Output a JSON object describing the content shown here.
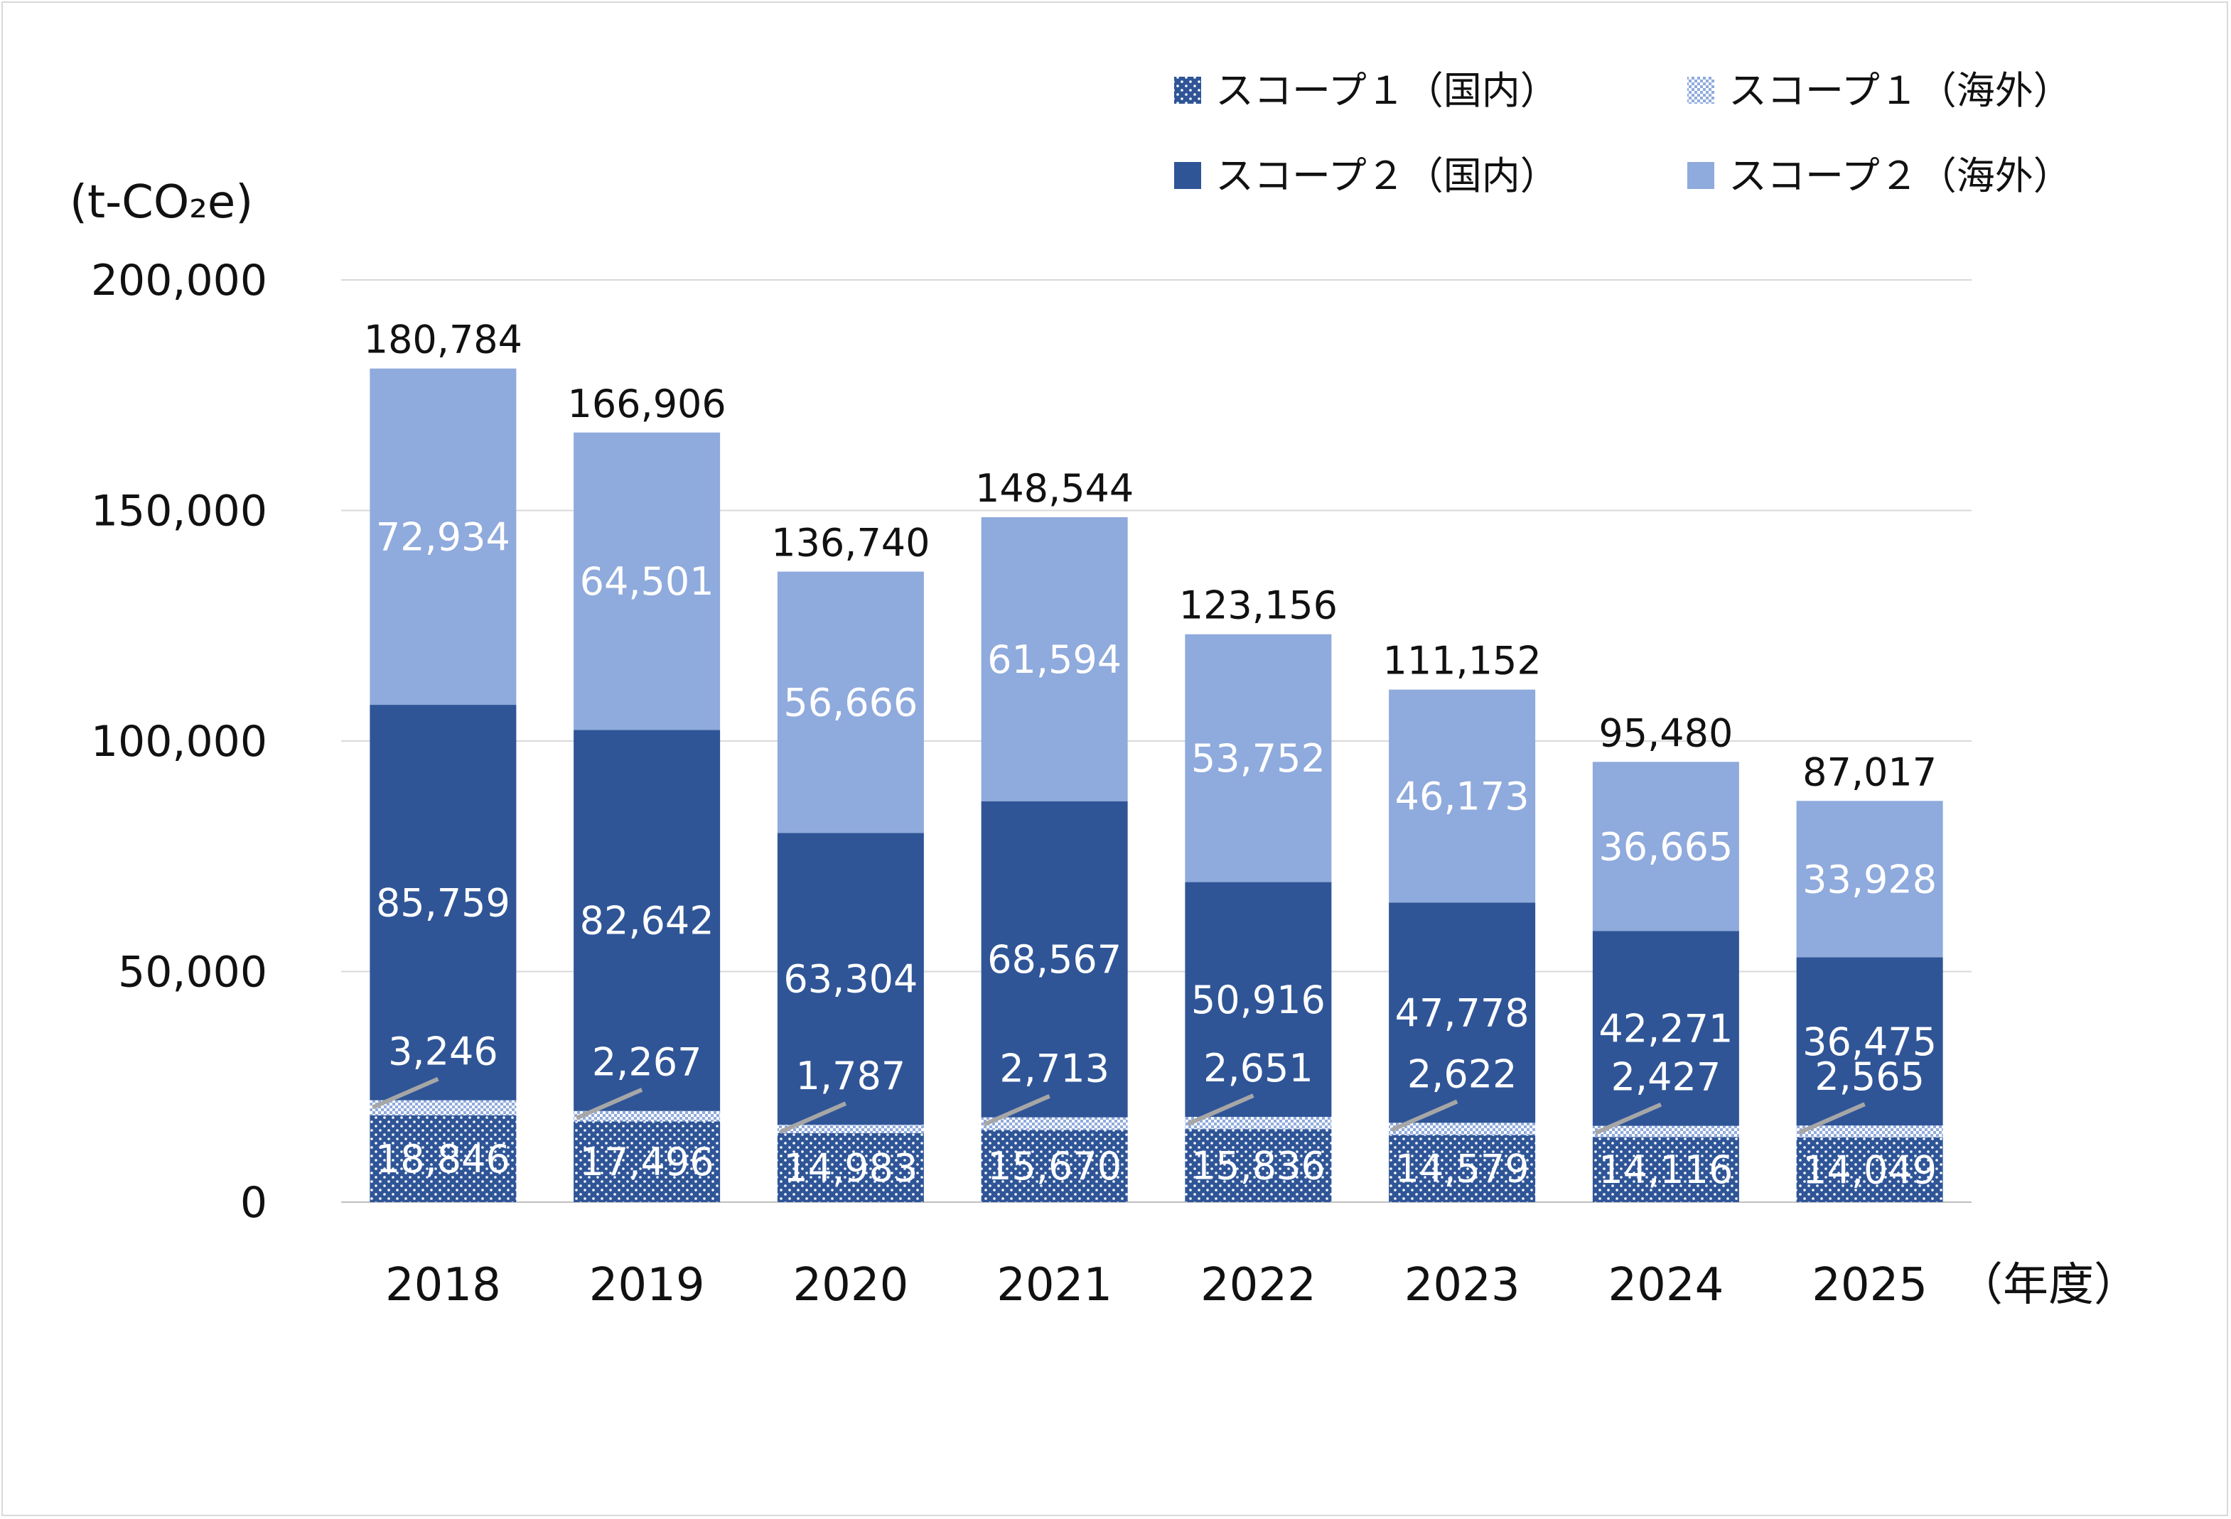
{
  "chart_data": {
    "type": "bar",
    "stacked": true,
    "unit_label": "(t-CO₂e)",
    "x_unit_label": "（年度）",
    "categories": [
      "2018",
      "2019",
      "2020",
      "2021",
      "2022",
      "2023",
      "2024",
      "2025"
    ],
    "ylim": [
      0,
      200000
    ],
    "yticks": [
      "0",
      "50,000",
      "100,000",
      "150,000",
      "200,000"
    ],
    "ytick_values": [
      0,
      50000,
      100000,
      150000,
      200000
    ],
    "grid": true,
    "legend_position": "top-right",
    "series": [
      {
        "name": "スコープ１（国内）",
        "values": [
          18846,
          17496,
          14983,
          15670,
          15836,
          14579,
          14116,
          14049
        ],
        "labels": [
          "18,846",
          "17,496",
          "14,983",
          "15,670",
          "15,836",
          "14,579",
          "14,116",
          "14,049"
        ],
        "color": "#2f5597",
        "pattern": "dots"
      },
      {
        "name": "スコープ１（海外）",
        "values": [
          3246,
          2267,
          1787,
          2713,
          2651,
          2622,
          2427,
          2565
        ],
        "labels": [
          "3,246",
          "2,267",
          "1,787",
          "2,713",
          "2,651",
          "2,622",
          "2,427",
          "2,565"
        ],
        "color": "#b4c7e7",
        "pattern": "checker"
      },
      {
        "name": "スコープ２（国内）",
        "values": [
          85759,
          82642,
          63304,
          68567,
          50916,
          47778,
          42271,
          36475
        ],
        "labels": [
          "85,759",
          "82,642",
          "63,304",
          "68,567",
          "50,916",
          "47,778",
          "42,271",
          "36,475"
        ],
        "color": "#2f5597"
      },
      {
        "name": "スコープ２（海外）",
        "values": [
          72934,
          64501,
          56666,
          61594,
          53752,
          46173,
          36665,
          33928
        ],
        "labels": [
          "72,934",
          "64,501",
          "56,666",
          "61,594",
          "53,752",
          "46,173",
          "36,665",
          "33,928"
        ],
        "color": "#8faadc"
      }
    ],
    "totals": [
      180784,
      166906,
      136740,
      148544,
      123156,
      111152,
      95480,
      87017
    ],
    "total_labels": [
      "180,784",
      "166,906",
      "136,740",
      "148,544",
      "123,156",
      "111,152",
      "95,480",
      "87,017"
    ]
  }
}
